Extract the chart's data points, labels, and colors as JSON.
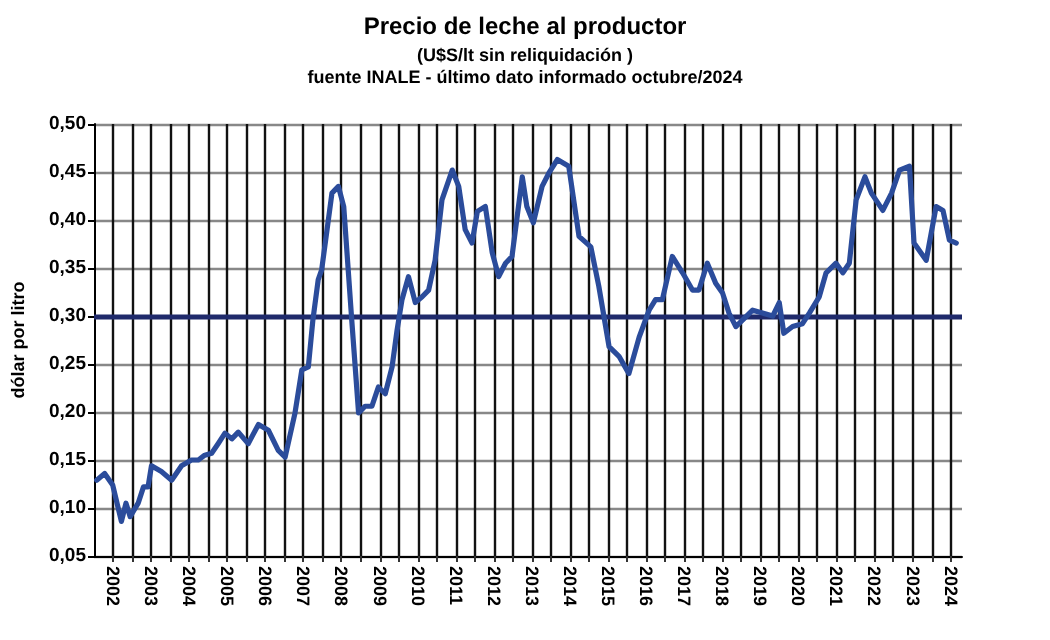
{
  "chart_data": {
    "type": "line",
    "title": "Precio de leche al productor",
    "subtitle": "(U$S/lt sin reliquidación )",
    "annotations": [
      "fuente INALE - último dato informado octubre/2024"
    ],
    "ylabel": "dólar por litro",
    "x": [
      2002.07,
      2002.28,
      2002.49,
      2002.72,
      2002.84,
      2002.95,
      2003.16,
      2003.3,
      2003.42,
      2003.51,
      2003.77,
      2004.04,
      2004.3,
      2004.56,
      2004.74,
      2004.91,
      2005.09,
      2005.26,
      2005.44,
      2005.62,
      2005.79,
      2006.05,
      2006.32,
      2006.58,
      2006.84,
      2007.02,
      2007.28,
      2007.46,
      2007.63,
      2007.75,
      2007.89,
      2007.98,
      2008.25,
      2008.42,
      2008.56,
      2008.77,
      2008.95,
      2009.12,
      2009.3,
      2009.47,
      2009.65,
      2009.83,
      2009.96,
      2010.09,
      2010.26,
      2010.44,
      2010.62,
      2010.79,
      2010.96,
      2011.14,
      2011.41,
      2011.58,
      2011.75,
      2011.93,
      2012.07,
      2012.28,
      2012.46,
      2012.63,
      2012.81,
      2012.98,
      2013.25,
      2013.37,
      2013.54,
      2013.77,
      2013.95,
      2014.17,
      2014.47,
      2014.74,
      2015.05,
      2015.26,
      2015.53,
      2015.79,
      2016.05,
      2016.32,
      2016.58,
      2016.75,
      2016.93,
      2017.19,
      2017.46,
      2017.72,
      2017.89,
      2018.11,
      2018.33,
      2018.51,
      2018.68,
      2018.86,
      2019.04,
      2019.3,
      2019.56,
      2019.83,
      2020.0,
      2020.12,
      2020.35,
      2020.61,
      2020.79,
      2021.05,
      2021.23,
      2021.49,
      2021.67,
      2021.84,
      2022.02,
      2022.25,
      2022.42,
      2022.72,
      2022.95,
      2023.16,
      2023.42,
      2023.54,
      2023.86,
      2024.12,
      2024.3,
      2024.47,
      2024.65
    ],
    "series": [
      {
        "color": "#2b4c9b",
        "values": [
          0.129,
          0.136,
          0.124,
          0.086,
          0.105,
          0.091,
          0.105,
          0.122,
          0.122,
          0.144,
          0.138,
          0.129,
          0.144,
          0.15,
          0.15,
          0.155,
          0.157,
          0.167,
          0.178,
          0.172,
          0.179,
          0.167,
          0.187,
          0.181,
          0.16,
          0.153,
          0.199,
          0.244,
          0.247,
          0.296,
          0.338,
          0.348,
          0.428,
          0.435,
          0.414,
          0.296,
          0.199,
          0.206,
          0.206,
          0.226,
          0.219,
          0.247,
          0.285,
          0.317,
          0.341,
          0.314,
          0.32,
          0.327,
          0.358,
          0.421,
          0.452,
          0.435,
          0.39,
          0.376,
          0.409,
          0.414,
          0.366,
          0.341,
          0.355,
          0.362,
          0.445,
          0.414,
          0.397,
          0.435,
          0.449,
          0.463,
          0.456,
          0.383,
          0.372,
          0.331,
          0.268,
          0.258,
          0.24,
          0.278,
          0.306,
          0.317,
          0.317,
          0.362,
          0.345,
          0.327,
          0.327,
          0.355,
          0.334,
          0.324,
          0.303,
          0.289,
          0.296,
          0.306,
          0.303,
          0.3,
          0.314,
          0.282,
          0.289,
          0.292,
          0.303,
          0.32,
          0.345,
          0.355,
          0.345,
          0.355,
          0.421,
          0.445,
          0.428,
          0.41,
          0.428,
          0.452,
          0.456,
          0.376,
          0.358,
          0.414,
          0.41,
          0.379,
          0.376
        ]
      }
    ],
    "xlim": [
      2002,
      2024.8
    ],
    "xticks": [
      {
        "value": 2002.5,
        "label": "2002"
      },
      {
        "value": 2003,
        "label": null
      },
      {
        "value": 2003.5,
        "label": "2003"
      },
      {
        "value": 2004,
        "label": null
      },
      {
        "value": 2004.5,
        "label": "2004"
      },
      {
        "value": 2005,
        "label": null
      },
      {
        "value": 2005.5,
        "label": "2005"
      },
      {
        "value": 2006,
        "label": null
      },
      {
        "value": 2006.5,
        "label": "2006"
      },
      {
        "value": 2007,
        "label": null
      },
      {
        "value": 2007.5,
        "label": "2007"
      },
      {
        "value": 2008,
        "label": null
      },
      {
        "value": 2008.5,
        "label": "2008"
      },
      {
        "value": 2009,
        "label": null
      },
      {
        "value": 2009.5,
        "label": "2009"
      },
      {
        "value": 2010,
        "label": null
      },
      {
        "value": 2010.5,
        "label": "2010"
      },
      {
        "value": 2011,
        "label": null
      },
      {
        "value": 2011.5,
        "label": "2011"
      },
      {
        "value": 2012,
        "label": null
      },
      {
        "value": 2012.5,
        "label": "2012"
      },
      {
        "value": 2013,
        "label": null
      },
      {
        "value": 2013.5,
        "label": "2013"
      },
      {
        "value": 2014,
        "label": null
      },
      {
        "value": 2014.5,
        "label": "2014"
      },
      {
        "value": 2015,
        "label": null
      },
      {
        "value": 2015.5,
        "label": "2015"
      },
      {
        "value": 2016,
        "label": null
      },
      {
        "value": 2016.5,
        "label": "2016"
      },
      {
        "value": 2017,
        "label": null
      },
      {
        "value": 2017.5,
        "label": "2017"
      },
      {
        "value": 2018,
        "label": null
      },
      {
        "value": 2018.5,
        "label": "2018"
      },
      {
        "value": 2019,
        "label": null
      },
      {
        "value": 2019.5,
        "label": "2019"
      },
      {
        "value": 2020,
        "label": null
      },
      {
        "value": 2020.5,
        "label": "2020"
      },
      {
        "value": 2021,
        "label": null
      },
      {
        "value": 2021.5,
        "label": "2021"
      },
      {
        "value": 2022,
        "label": null
      },
      {
        "value": 2022.5,
        "label": "2022"
      },
      {
        "value": 2023,
        "label": null
      },
      {
        "value": 2023.5,
        "label": "2023"
      },
      {
        "value": 2024,
        "label": null
      },
      {
        "value": 2024.5,
        "label": "2024"
      }
    ],
    "ylim": [
      0.05,
      0.5
    ],
    "yticks": [
      {
        "value": 0.05,
        "label": "0,05"
      },
      {
        "value": 0.1,
        "label": "0,10"
      },
      {
        "value": 0.15,
        "label": "0,15"
      },
      {
        "value": 0.2,
        "label": "0,20"
      },
      {
        "value": 0.25,
        "label": "0,25"
      },
      {
        "value": 0.3,
        "label": "0,30"
      },
      {
        "value": 0.35,
        "label": "0,35"
      },
      {
        "value": 0.4,
        "label": "0,40"
      },
      {
        "value": 0.45,
        "label": "0,45"
      },
      {
        "value": 0.5,
        "label": "0,50"
      }
    ],
    "ref_lines": [
      {
        "axis": "y",
        "value": 0.3,
        "color": "#1f2a6b"
      }
    ],
    "grid": true,
    "marker": "none",
    "line_style": "solid"
  }
}
